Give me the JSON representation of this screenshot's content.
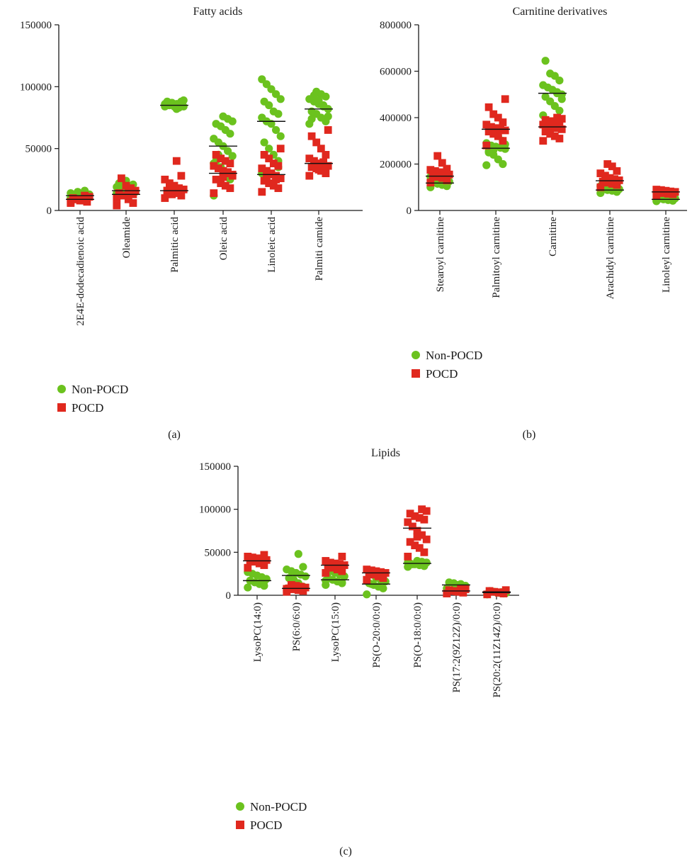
{
  "colors": {
    "non_pocd": "#6bc21e",
    "pocd": "#e0281e",
    "axis": "#1a1a1a"
  },
  "chart_data": [
    {
      "id": "a",
      "type": "scatter",
      "panel_label": "(a)",
      "title": "Fatty acids",
      "ylim": [
        0,
        150000
      ],
      "yticks": [
        0,
        50000,
        100000,
        150000
      ],
      "ytick_labels": [
        "0",
        "50000",
        "100000",
        "150000"
      ],
      "categories": [
        "2E4E-dodecadienoic acid",
        "Oleamide",
        "Palmitic acid",
        "Oleic acid",
        "Linoleic acid",
        "Palmiti camide"
      ],
      "legend": {
        "position": "below-left",
        "entries": [
          "Non-POCD",
          "POCD"
        ]
      },
      "series": [
        {
          "name": "Non-POCD",
          "marker": "circle",
          "means": [
            12000,
            16000,
            85000,
            52000,
            72000,
            82000
          ],
          "points": [
            [
              10000,
              12000,
              14000,
              15000,
              11000,
              13000,
              16000,
              9000,
              12000,
              14000,
              10000,
              13000,
              15000,
              11000
            ],
            [
              14000,
              16000,
              18000,
              20000,
              22000,
              15000,
              17000,
              24000,
              13000,
              19000,
              21000,
              16000,
              18000,
              15000
            ],
            [
              84000,
              85000,
              86000,
              87000,
              88000,
              89000,
              83000,
              84000,
              85000,
              86000,
              88000,
              82000,
              87000,
              85000,
              84000,
              86000
            ],
            [
              12000,
              25000,
              30000,
              35000,
              40000,
              44000,
              48000,
              52000,
              55000,
              58000,
              62000,
              65000,
              68000,
              70000,
              72000,
              74000,
              76000,
              45000,
              38000,
              28000
            ],
            [
              30000,
              40000,
              45000,
              50000,
              55000,
              60000,
              65000,
              70000,
              72000,
              75000,
              78000,
              80000,
              85000,
              88000,
              90000,
              94000,
              98000,
              102000,
              106000,
              35000
            ],
            [
              70000,
              72000,
              75000,
              78000,
              80000,
              82000,
              84000,
              86000,
              88000,
              90000,
              92000,
              94000,
              96000,
              74000,
              76000,
              85000,
              89000,
              93000
            ]
          ]
        },
        {
          "name": "POCD",
          "marker": "square",
          "means": [
            9000,
            13000,
            16000,
            30000,
            29000,
            38000
          ],
          "points": [
            [
              6000,
              7000,
              8000,
              9000,
              10000,
              11000,
              12000,
              8000,
              9000,
              7000
            ],
            [
              4000,
              6000,
              9000,
              12000,
              14000,
              16000,
              18000,
              20000,
              26000,
              10000,
              13000,
              15000
            ],
            [
              10000,
              12000,
              14000,
              15000,
              16000,
              17000,
              18000,
              20000,
              22000,
              25000,
              28000,
              40000,
              13000,
              16000
            ],
            [
              14000,
              18000,
              20000,
              22000,
              25000,
              28000,
              30000,
              32000,
              34000,
              36000,
              38000,
              40000,
              42000,
              45000,
              29000,
              31000,
              27000
            ],
            [
              15000,
              18000,
              20000,
              22000,
              24000,
              26000,
              28000,
              30000,
              32000,
              34000,
              36000,
              38000,
              42000,
              45000,
              50000,
              25000,
              29000,
              27000
            ],
            [
              28000,
              30000,
              32000,
              34000,
              35000,
              36000,
              37000,
              38000,
              40000,
              42000,
              45000,
              50000,
              55000,
              60000,
              65000,
              39000,
              33000
            ]
          ]
        }
      ]
    },
    {
      "id": "b",
      "type": "scatter",
      "panel_label": "(b)",
      "title": "Carnitine derivatives",
      "ylim": [
        0,
        800000
      ],
      "yticks": [
        0,
        200000,
        400000,
        600000,
        800000
      ],
      "ytick_labels": [
        "0",
        "200000",
        "400000",
        "600000",
        "800000"
      ],
      "categories": [
        "Stearoyl carnitine",
        "Palmitoyl carnitine",
        "Carnitine",
        "Arachidyl carnitine",
        "Linoleyl carnitine"
      ],
      "legend": {
        "position": "below-left",
        "entries": [
          "Non-POCD",
          "POCD"
        ]
      },
      "series": [
        {
          "name": "Non-POCD",
          "marker": "circle",
          "means": [
            118000,
            268000,
            505000,
            88000,
            48000
          ],
          "points": [
            [
              100000,
              105000,
              110000,
              115000,
              120000,
              125000,
              130000,
              135000,
              140000,
              145000,
              112000,
              118000,
              128000
            ],
            [
              195000,
              200000,
              220000,
              240000,
              255000,
              265000,
              270000,
              275000,
              280000,
              290000,
              300000,
              320000,
              260000,
              250000,
              285000
            ],
            [
              410000,
              430000,
              450000,
              470000,
              490000,
              500000,
              510000,
              520000,
              530000,
              540000,
              560000,
              580000,
              590000,
              645000,
              480000,
              505000
            ],
            [
              75000,
              80000,
              85000,
              88000,
              90000,
              92000,
              95000,
              98000,
              100000,
              105000,
              110000,
              87000
            ],
            [
              40000,
              42000,
              45000,
              48000,
              50000,
              52000,
              55000,
              58000,
              60000,
              46000
            ]
          ]
        },
        {
          "name": "POCD",
          "marker": "square",
          "means": [
            148000,
            350000,
            360000,
            128000,
            80000
          ],
          "points": [
            [
              120000,
              130000,
              140000,
              145000,
              150000,
              155000,
              160000,
              165000,
              170000,
              175000,
              180000,
              205000,
              235000
            ],
            [
              280000,
              300000,
              320000,
              330000,
              340000,
              345000,
              350000,
              355000,
              360000,
              370000,
              380000,
              400000,
              415000,
              445000,
              480000
            ],
            [
              300000,
              310000,
              320000,
              330000,
              340000,
              350000,
              355000,
              360000,
              365000,
              370000,
              375000,
              380000,
              385000,
              390000,
              395000,
              400000
            ],
            [
              100000,
              110000,
              115000,
              120000,
              125000,
              130000,
              135000,
              140000,
              150000,
              160000,
              170000,
              190000,
              200000
            ],
            [
              65000,
              70000,
              72000,
              75000,
              78000,
              80000,
              82000,
              85000,
              88000,
              90000
            ]
          ]
        }
      ]
    },
    {
      "id": "c",
      "type": "scatter",
      "panel_label": "(c)",
      "title": "Lipids",
      "ylim": [
        0,
        150000
      ],
      "yticks": [
        0,
        50000,
        100000,
        150000
      ],
      "ytick_labels": [
        "0",
        "50000",
        "100000",
        "150000"
      ],
      "categories": [
        "LysoPC(14:0)",
        "PS(6:0/6:0)",
        "LysoPC(15:0)",
        "PS(O-20:0/0:0)",
        "PS(O-18:0/0:0)",
        "PS(17:2(9Z12Z)/0:0)",
        "PS(20:2(11Z14Z)/0:0)"
      ],
      "legend": {
        "position": "below-left",
        "entries": [
          "Non-POCD",
          "POCD"
        ]
      },
      "series": [
        {
          "name": "Non-POCD",
          "marker": "circle",
          "means": [
            17000,
            23000,
            18000,
            13000,
            37000,
            12000,
            3000
          ],
          "points": [
            [
              9000,
              11000,
              13000,
              15000,
              17000,
              19000,
              21000,
              23000,
              25000,
              27000,
              16000,
              14000
            ],
            [
              8000,
              10000,
              14000,
              18000,
              20000,
              22000,
              24000,
              26000,
              28000,
              30000,
              33000,
              48000,
              16000
            ],
            [
              12000,
              14000,
              16000,
              18000,
              20000,
              22000,
              24000,
              26000,
              28000,
              17000,
              15000
            ],
            [
              1000,
              8000,
              10000,
              12000,
              14000,
              16000,
              18000,
              20000,
              13000
            ],
            [
              33000,
              34000,
              35000,
              36000,
              37000,
              38000,
              39000,
              40000,
              36000,
              38000
            ],
            [
              8000,
              10000,
              12000,
              14000,
              15000,
              11000,
              13000,
              9000
            ],
            [
              1000,
              2000,
              3000,
              4000,
              5000,
              2500,
              3500
            ]
          ]
        },
        {
          "name": "POCD",
          "marker": "square",
          "means": [
            40000,
            8000,
            35000,
            26000,
            78000,
            5000,
            4000
          ],
          "points": [
            [
              32000,
              35000,
              37000,
              39000,
              40000,
              41000,
              42000,
              43000,
              44000,
              45000,
              47000,
              38000
            ],
            [
              4000,
              5000,
              6000,
              7000,
              8000,
              9000,
              10000,
              11000,
              12000,
              7500
            ],
            [
              26000,
              28000,
              30000,
              32000,
              34000,
              35000,
              36000,
              37000,
              38000,
              40000,
              45000,
              33000
            ],
            [
              18000,
              20000,
              22000,
              24000,
              25000,
              26000,
              27000,
              28000,
              29000,
              30000,
              23000
            ],
            [
              45000,
              50000,
              55000,
              58000,
              62000,
              65000,
              70000,
              75000,
              80000,
              85000,
              88000,
              90000,
              92000,
              95000,
              98000,
              100000,
              68000
            ],
            [
              2000,
              3000,
              4000,
              5000,
              6000,
              7000,
              8000,
              4500
            ],
            [
              1000,
              2000,
              3000,
              4000,
              5000,
              6000,
              3500
            ]
          ]
        }
      ]
    }
  ]
}
